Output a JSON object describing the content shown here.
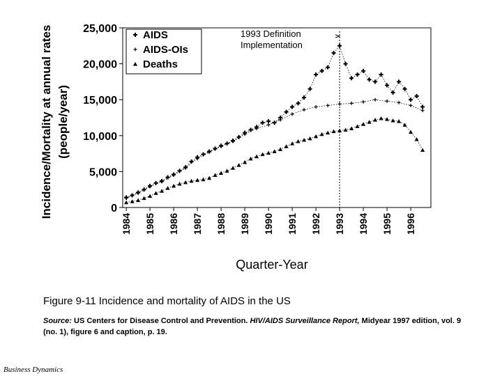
{
  "chart_data": {
    "type": "scatter",
    "ylabel_line1": "Incidence/Mortality  at annual rates",
    "ylabel_line2": "(people/year)",
    "xlabel": "Quarter-Year",
    "ylim": [
      0,
      25000
    ],
    "xlim": [
      1983.85,
      1996.85
    ],
    "y_ticks": [
      "0",
      "5,000",
      "10,000",
      "15,000",
      "20,000",
      "25,000"
    ],
    "y_tick_values": [
      0,
      5000,
      10000,
      15000,
      20000,
      25000
    ],
    "x_ticks": [
      "1984",
      "1985",
      "1986",
      "1987",
      "1988",
      "1989",
      "1990",
      "1991",
      "1992",
      "1993",
      "1994",
      "1995",
      "1996"
    ],
    "x_tick_values": [
      1984,
      1985,
      1986,
      1987,
      1988,
      1989,
      1990,
      1991,
      1992,
      1993,
      1994,
      1995,
      1996
    ],
    "annotation": {
      "line1": "1993 Definition",
      "line2": "Implementation",
      "x": 1993.0
    },
    "series": [
      {
        "name": "AIDS",
        "marker": "plus",
        "x": [
          1984.0,
          1984.25,
          1984.5,
          1984.75,
          1985.0,
          1985.25,
          1985.5,
          1985.75,
          1986.0,
          1986.25,
          1986.5,
          1986.75,
          1987.0,
          1987.25,
          1987.5,
          1987.75,
          1988.0,
          1988.25,
          1988.5,
          1988.75,
          1989.0,
          1989.25,
          1989.5,
          1989.75,
          1990.0,
          1990.25,
          1990.5,
          1990.75,
          1991.0,
          1991.25,
          1991.5,
          1991.75,
          1992.0,
          1992.25,
          1992.5,
          1992.75,
          1993.0,
          1993.25,
          1993.5,
          1993.75,
          1994.0,
          1994.25,
          1994.5,
          1994.75,
          1995.0,
          1995.25,
          1995.5,
          1995.75,
          1996.0,
          1996.25,
          1996.5
        ],
        "y": [
          1400,
          1700,
          2100,
          2500,
          3000,
          3400,
          3700,
          4200,
          4600,
          5100,
          5600,
          6400,
          7000,
          7400,
          7800,
          8200,
          8600,
          8900,
          9300,
          9800,
          10400,
          10800,
          11200,
          11800,
          12000,
          11800,
          12500,
          13300,
          14000,
          14500,
          15300,
          16500,
          18500,
          19000,
          19500,
          21500,
          22500,
          20000,
          18000,
          18500,
          19000,
          17800,
          17500,
          18500,
          17000,
          16000,
          17500,
          16500,
          15000,
          15500,
          14000
        ]
      },
      {
        "name": "AIDS-OIs",
        "marker": "dot",
        "x": [
          1984.0,
          1984.5,
          1985.0,
          1985.5,
          1986.0,
          1986.5,
          1987.0,
          1987.5,
          1988.0,
          1988.5,
          1989.0,
          1989.5,
          1990.0,
          1990.5,
          1991.0,
          1991.5,
          1992.0,
          1992.5,
          1993.0,
          1993.5,
          1994.0,
          1994.5,
          1995.0,
          1995.5,
          1996.0,
          1996.5
        ],
        "y": [
          1300,
          2000,
          2900,
          3600,
          4500,
          5500,
          6800,
          7700,
          8500,
          9200,
          10200,
          11000,
          11500,
          12200,
          13000,
          13600,
          14000,
          14200,
          14400,
          14500,
          14700,
          15000,
          14800,
          14600,
          14200,
          13500
        ]
      },
      {
        "name": "Deaths",
        "marker": "triangle",
        "x": [
          1984.0,
          1984.25,
          1984.5,
          1984.75,
          1985.0,
          1985.25,
          1985.5,
          1985.75,
          1986.0,
          1986.25,
          1986.5,
          1986.75,
          1987.0,
          1987.25,
          1987.5,
          1987.75,
          1988.0,
          1988.25,
          1988.5,
          1988.75,
          1989.0,
          1989.25,
          1989.5,
          1989.75,
          1990.0,
          1990.25,
          1990.5,
          1990.75,
          1991.0,
          1991.25,
          1991.5,
          1991.75,
          1992.0,
          1992.25,
          1992.5,
          1992.75,
          1993.0,
          1993.25,
          1993.5,
          1993.75,
          1994.0,
          1994.25,
          1994.5,
          1994.75,
          1995.0,
          1995.25,
          1995.5,
          1995.75,
          1996.0,
          1996.25,
          1996.5
        ],
        "y": [
          700,
          850,
          1000,
          1300,
          1600,
          2000,
          2300,
          2700,
          3000,
          3300,
          3500,
          3700,
          3800,
          3900,
          4100,
          4500,
          4800,
          5100,
          5500,
          5900,
          6300,
          6800,
          7100,
          7400,
          7600,
          7800,
          8100,
          8500,
          8900,
          9200,
          9400,
          9600,
          9900,
          10200,
          10400,
          10600,
          10700,
          10800,
          11000,
          11300,
          11600,
          11900,
          12200,
          12400,
          12300,
          12100,
          12000,
          11500,
          10500,
          9500,
          8000
        ]
      }
    ]
  },
  "caption": "Figure 9-11  Incidence and mortality of AIDS in the US",
  "source": {
    "label": "Source:",
    "text1": "  US Centers for Disease Control and Prevention.  ",
    "report": "HIV/AIDS Surveillance Report,",
    "text2": " Midyear 1997 edition, vol. 9 (no. 1), figure 6 and caption, p. 19."
  },
  "footer": "Business Dynamics"
}
